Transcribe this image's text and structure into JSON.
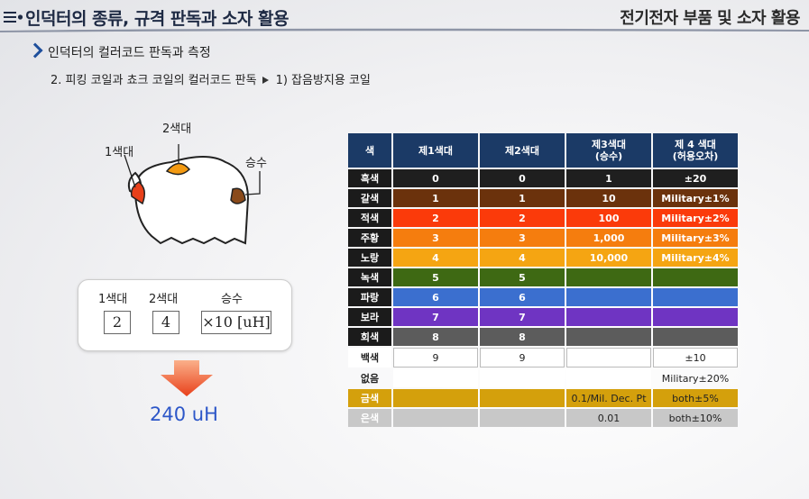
{
  "header": {
    "title": "인덕터의 종류, 규격 판독과 소자 활용",
    "right_title": "전기전자 부품 및 소자 활용"
  },
  "sub": {
    "section": "인덕터의 컬러코드 판독과 측정",
    "item": "2. 피킹 코일과 쵸크 코일의 컬러코드 판독",
    "subitem": "1) 잡음방지용 코일"
  },
  "diagram": {
    "band1": "1색대",
    "band2": "2색대",
    "mult": "승수",
    "band1_color": "#e8401a",
    "band2_color": "#f39a12",
    "mult_color": "#8a4a1a"
  },
  "code": {
    "h1": "1색대",
    "h2": "2색대",
    "h3": "승수",
    "v1": "2",
    "v2": "4",
    "v3": "×10 [uH]"
  },
  "result": "240 uH",
  "table": {
    "headers": [
      "색",
      "제1색대",
      "제2색대",
      "제3색대\n(승수)",
      "제 4 색대\n(허용오차)"
    ],
    "rows": [
      {
        "name": "흑색",
        "c1": "0",
        "c2": "0",
        "c3": "1",
        "c4": "±20",
        "bg": "#1f1f1f",
        "fill": [
          1,
          1,
          1,
          1
        ],
        "dark": false
      },
      {
        "name": "갈색",
        "c1": "1",
        "c2": "1",
        "c3": "10",
        "c4": "Military±1%",
        "bg": "#6b320c",
        "fill": [
          1,
          1,
          1,
          1
        ],
        "dark": false
      },
      {
        "name": "적색",
        "c1": "2",
        "c2": "2",
        "c3": "100",
        "c4": "Military±2%",
        "bg": "#fb3a0a",
        "fill": [
          1,
          1,
          1,
          1
        ],
        "dark": false
      },
      {
        "name": "주황",
        "c1": "3",
        "c2": "3",
        "c3": "1,000",
        "c4": "Military±3%",
        "bg": "#f57d0e",
        "fill": [
          1,
          1,
          1,
          1
        ],
        "dark": false
      },
      {
        "name": "노랑",
        "c1": "4",
        "c2": "4",
        "c3": "10,000",
        "c4": "Military±4%",
        "bg": "#f5a512",
        "fill": [
          1,
          1,
          1,
          1
        ],
        "dark": false
      },
      {
        "name": "녹색",
        "c1": "5",
        "c2": "5",
        "c3": "",
        "c4": "",
        "bg": "#3e6913",
        "fill": [
          1,
          1,
          1,
          1
        ],
        "dark": false
      },
      {
        "name": "파랑",
        "c1": "6",
        "c2": "6",
        "c3": "",
        "c4": "",
        "bg": "#3b6fcf",
        "fill": [
          1,
          1,
          1,
          1
        ],
        "dark": false
      },
      {
        "name": "보라",
        "c1": "7",
        "c2": "7",
        "c3": "",
        "c4": "",
        "bg": "#6f34c2",
        "fill": [
          1,
          1,
          1,
          1
        ],
        "dark": false
      },
      {
        "name": "회색",
        "c1": "8",
        "c2": "8",
        "c3": "",
        "c4": "",
        "bg": "#5c5c5c",
        "fill": [
          1,
          1,
          1,
          1
        ],
        "dark": false
      },
      {
        "name": "백색",
        "c1": "9",
        "c2": "9",
        "c3": "",
        "c4": "±10",
        "bg": "#ffffff",
        "fill": [
          1,
          1,
          1,
          1
        ],
        "dark": true
      },
      {
        "name": "없음",
        "c1": "",
        "c2": "",
        "c3": "",
        "c4": "Military±20%",
        "bg": "#ffffff",
        "fill": [
          0,
          0,
          0,
          0
        ],
        "dark": true
      },
      {
        "name": "금색",
        "c1": "",
        "c2": "",
        "c3": "0.1/Mil. Dec. Pt",
        "c4": "both±5%",
        "bg": "#d4a00c",
        "fill": [
          1,
          1,
          1,
          1
        ],
        "dark": true
      },
      {
        "name": "은색",
        "c1": "",
        "c2": "",
        "c3": "0.01",
        "c4": "both±10%",
        "bg": "#c8c8c8",
        "fill": [
          1,
          1,
          1,
          1
        ],
        "dark": true
      }
    ]
  }
}
